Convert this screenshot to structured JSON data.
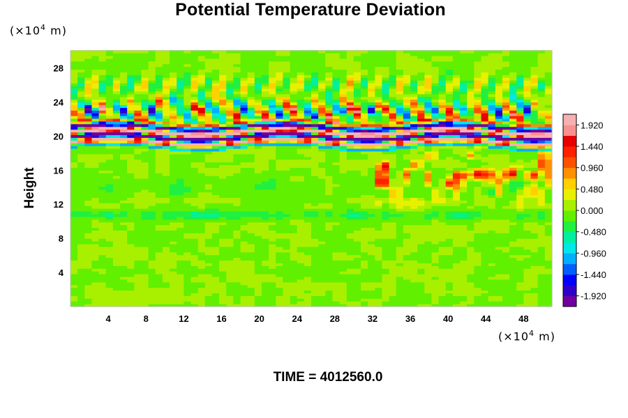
{
  "chart_data": {
    "type": "heatmap",
    "title": "Potential Temperature Deviation",
    "ylabel": "Height",
    "x_unit": "(×10",
    "x_unit_exp": "4",
    "x_unit_tail": " m)",
    "y_unit": "(×10",
    "y_unit_exp": "4",
    "y_unit_tail": " m)",
    "xlim": [
      0,
      51
    ],
    "ylim": [
      0,
      30
    ],
    "x_ticks": [
      "4",
      "8",
      "12",
      "16",
      "20",
      "24",
      "28",
      "32",
      "36",
      "40",
      "44",
      "48"
    ],
    "y_ticks": [
      "4",
      "8",
      "12",
      "16",
      "20",
      "24",
      "28"
    ],
    "colorbar": {
      "range": [
        -2.16,
        2.16
      ],
      "labels": [
        "1.920",
        "1.440",
        "0.960",
        "0.480",
        "0.000",
        "-0.480",
        "-0.960",
        "-1.440",
        "-1.920"
      ],
      "colors": [
        "#7000a0",
        "#3000c8",
        "#0000ff",
        "#0060ff",
        "#00b0ff",
        "#00e8e8",
        "#00f0a0",
        "#20f040",
        "#60f000",
        "#a8f000",
        "#e8f000",
        "#ffd000",
        "#ff9000",
        "#ff5000",
        "#ff2000",
        "#e80000",
        "#f89090",
        "#f8b0b0"
      ]
    },
    "features": [
      {
        "name": "main band",
        "x_range": [
          0,
          51
        ],
        "y_center": 20.2,
        "amplitude": "max"
      },
      {
        "name": "wave layer",
        "x_range": [
          0,
          51
        ],
        "y_range": [
          21,
          25
        ],
        "amplitude": "alternating ±1.9"
      },
      {
        "name": "warm patches",
        "x_range": [
          33,
          51
        ],
        "y_range": [
          12,
          18
        ],
        "amplitude": "+0.5 to +1.9"
      },
      {
        "name": "cool layer",
        "x_range": [
          0,
          51
        ],
        "y_range": [
          10,
          12
        ],
        "amplitude": "-0.5"
      }
    ]
  },
  "footer": {
    "time_text": "TIME = 4012560.0"
  }
}
